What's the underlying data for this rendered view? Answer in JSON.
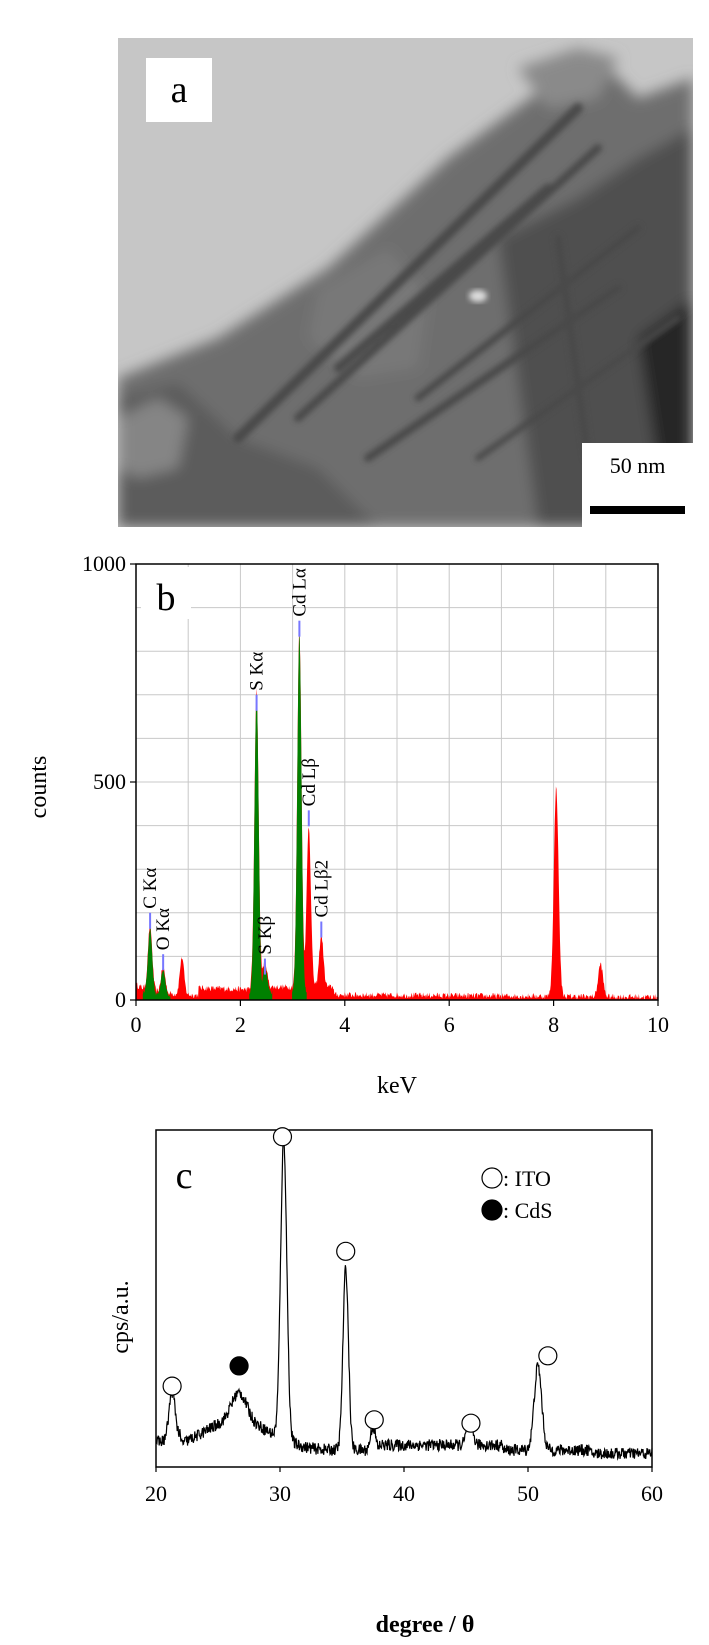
{
  "panel_a": {
    "letter": "a",
    "scale_bar_label": "50 nm"
  },
  "chart_data": [
    {
      "type": "area",
      "panel_letter": "b",
      "xlabel": "keV",
      "ylabel": "counts",
      "xlim": [
        0,
        10
      ],
      "ylim": [
        0,
        1000
      ],
      "x_ticks": [
        0,
        2,
        4,
        6,
        8,
        10
      ],
      "y_ticks": [
        0,
        500,
        1000
      ],
      "grid": true,
      "colors": {
        "background_fill": "#ff0000",
        "element_fill": "#008000",
        "marker_line": "#7777ff"
      },
      "peaks": [
        {
          "x": 0.27,
          "y": 150,
          "color": "green"
        },
        {
          "x": 0.52,
          "y": 60,
          "color": "green"
        },
        {
          "x": 0.88,
          "y": 85,
          "color": "red"
        },
        {
          "x": 2.31,
          "y": 680,
          "color": "green"
        },
        {
          "x": 2.47,
          "y": 60,
          "color": "green"
        },
        {
          "x": 3.13,
          "y": 820,
          "color": "green"
        },
        {
          "x": 3.31,
          "y": 370,
          "color": "red"
        },
        {
          "x": 3.55,
          "y": 120,
          "color": "red"
        },
        {
          "x": 8.05,
          "y": 480,
          "color": "red"
        },
        {
          "x": 8.9,
          "y": 75,
          "color": "red"
        }
      ],
      "annotations": [
        {
          "label": "C Kα",
          "x": 0.27,
          "y": 200
        },
        {
          "label": "O Kα",
          "x": 0.52,
          "y": 105
        },
        {
          "label": "S Kα",
          "x": 2.31,
          "y": 700
        },
        {
          "label": "S Kβ",
          "x": 2.47,
          "y": 95
        },
        {
          "label": "Cd Lα",
          "x": 3.13,
          "y": 870
        },
        {
          "label": "Cd Lβ",
          "x": 3.31,
          "y": 435
        },
        {
          "label": "Cd Lβ2",
          "x": 3.55,
          "y": 180
        }
      ]
    },
    {
      "type": "line",
      "panel_letter": "c",
      "xlabel": "degree / θ",
      "ylabel": "cps/a.u.",
      "xlim": [
        20,
        60
      ],
      "ylim": [
        0,
        1
      ],
      "x_ticks": [
        20,
        30,
        40,
        50,
        60
      ],
      "grid": false,
      "legend_position": "top-right",
      "legend": [
        {
          "marker": "open-circle",
          "label": ": ITO"
        },
        {
          "marker": "filled-circle",
          "label": ": CdS"
        }
      ],
      "peaks": [
        {
          "x": 21.3,
          "y": 0.14,
          "width": 0.25
        },
        {
          "x": 26.7,
          "y": 0.08,
          "width": 0.6
        },
        {
          "x": 30.3,
          "y": 0.89,
          "width": 0.25
        },
        {
          "x": 35.3,
          "y": 0.54,
          "width": 0.22
        },
        {
          "x": 37.5,
          "y": 0.07,
          "width": 0.2
        },
        {
          "x": 45.3,
          "y": 0.07,
          "width": 0.25
        },
        {
          "x": 50.8,
          "y": 0.25,
          "width": 0.3
        }
      ],
      "markers": [
        {
          "x": 21.3,
          "y": 0.24,
          "type": "ITO"
        },
        {
          "x": 26.7,
          "y": 0.3,
          "type": "CdS"
        },
        {
          "x": 30.2,
          "y": 0.98,
          "type": "ITO"
        },
        {
          "x": 35.3,
          "y": 0.64,
          "type": "ITO"
        },
        {
          "x": 37.6,
          "y": 0.14,
          "type": "ITO"
        },
        {
          "x": 45.4,
          "y": 0.13,
          "type": "ITO"
        },
        {
          "x": 51.6,
          "y": 0.33,
          "type": "ITO"
        }
      ]
    }
  ]
}
